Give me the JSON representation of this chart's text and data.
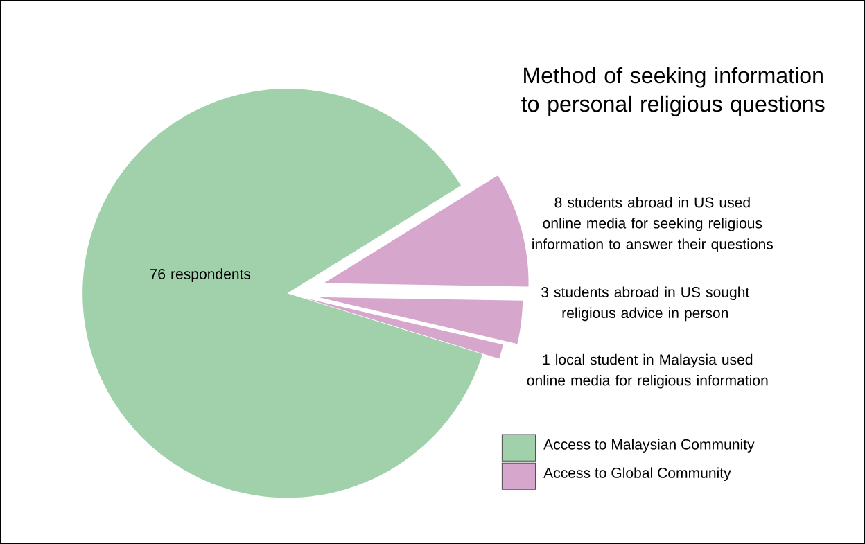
{
  "chart_data": {
    "type": "pie",
    "title": "Method of seeking information to personal religious questions",
    "categories": [
      "76 respondents",
      "8 students abroad in US used online media for seeking religious information to answer their questions",
      "3 students abroad in US sought religious advice in person",
      "1 local student in Malaysia used online media for religious information"
    ],
    "values": [
      76,
      8,
      3,
      1
    ],
    "colors": [
      "#a0d1aa",
      "#d6a6cc",
      "#d6a6cc",
      "#d6a6cc"
    ],
    "annotations": [
      "Access to Malaysian Community",
      "Access to Global Community"
    ]
  }
}
